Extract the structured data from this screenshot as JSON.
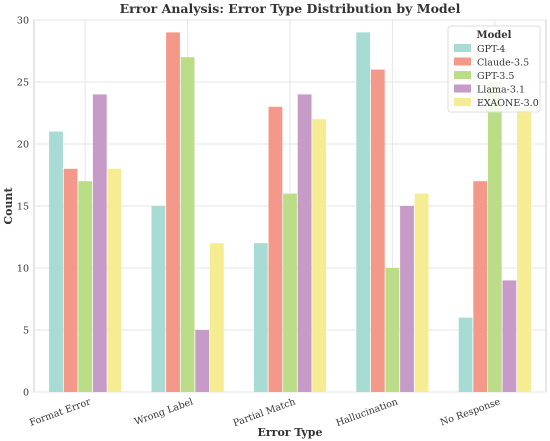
{
  "chart_data": {
    "type": "bar",
    "title": "Error Analysis: Error Type Distribution by Model",
    "xlabel": "Error Type",
    "ylabel": "Count",
    "ylim": [
      0,
      30
    ],
    "yticks": [
      0,
      5,
      10,
      15,
      20,
      25,
      30
    ],
    "grid": true,
    "legend_title": "Model",
    "legend_placement": "top-right",
    "categories": [
      "Format Error",
      "Wrong Label",
      "Partial Match",
      "Hallucination",
      "No Response"
    ],
    "series": [
      {
        "name": "GPT-4",
        "color": "#a7dbd3",
        "values": [
          21,
          15,
          12,
          29,
          6
        ]
      },
      {
        "name": "Claude-3.5",
        "color": "#f4998a",
        "values": [
          18,
          29,
          23,
          26,
          17
        ]
      },
      {
        "name": "GPT-3.5",
        "color": "#bcdd87",
        "values": [
          17,
          27,
          16,
          10,
          25
        ]
      },
      {
        "name": "Llama-3.1",
        "color": "#c69bc8",
        "values": [
          24,
          5,
          24,
          15,
          9
        ]
      },
      {
        "name": "EXAONE-3.0",
        "color": "#f6ec92",
        "values": [
          18,
          12,
          22,
          16,
          23
        ]
      }
    ]
  }
}
